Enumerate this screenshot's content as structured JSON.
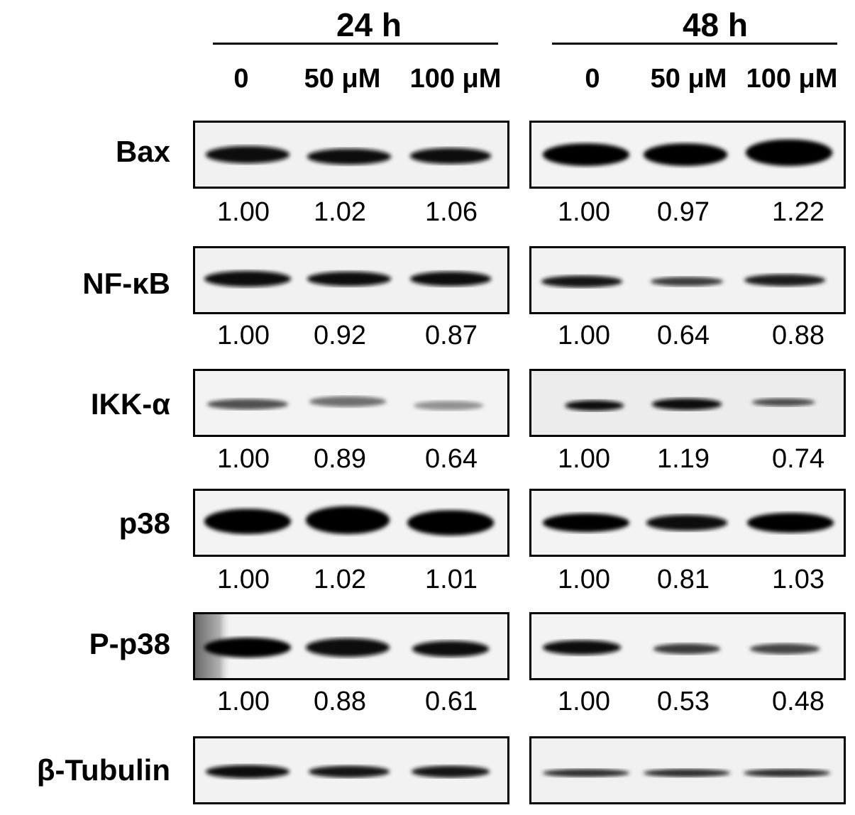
{
  "time_points": [
    "24 h",
    "48 h"
  ],
  "doses": [
    "0",
    "50 μM",
    "100 μM"
  ],
  "doses_48h": [
    "0",
    "50 μM",
    "100 μM"
  ],
  "rows": [
    {
      "label": "Bax",
      "values_24h": [
        "1.00",
        "1.02",
        "1.06"
      ],
      "values_48h": [
        "1.00",
        "0.97",
        "1.22"
      ]
    },
    {
      "label": "NF-κB",
      "values_24h": [
        "1.00",
        "0.92",
        "0.87"
      ],
      "values_48h": [
        "1.00",
        "0.64",
        "0.88"
      ]
    },
    {
      "label": "IKK-α",
      "values_24h": [
        "1.00",
        "0.89",
        "0.64"
      ],
      "values_48h": [
        "1.00",
        "1.19",
        "0.74"
      ]
    },
    {
      "label": "p38",
      "values_24h": [
        "1.00",
        "1.02",
        "1.01"
      ],
      "values_48h": [
        "1.00",
        "0.81",
        "1.03"
      ]
    },
    {
      "label": "P-p38",
      "values_24h": [
        "1.00",
        "0.88",
        "0.61"
      ],
      "values_48h": [
        "1.00",
        "0.53",
        "0.48"
      ]
    },
    {
      "label": "β-Tubulin"
    }
  ],
  "colors": {
    "band": "#0a0a0a",
    "background": "#ffffff",
    "blot_background": "#f2f2f2"
  }
}
